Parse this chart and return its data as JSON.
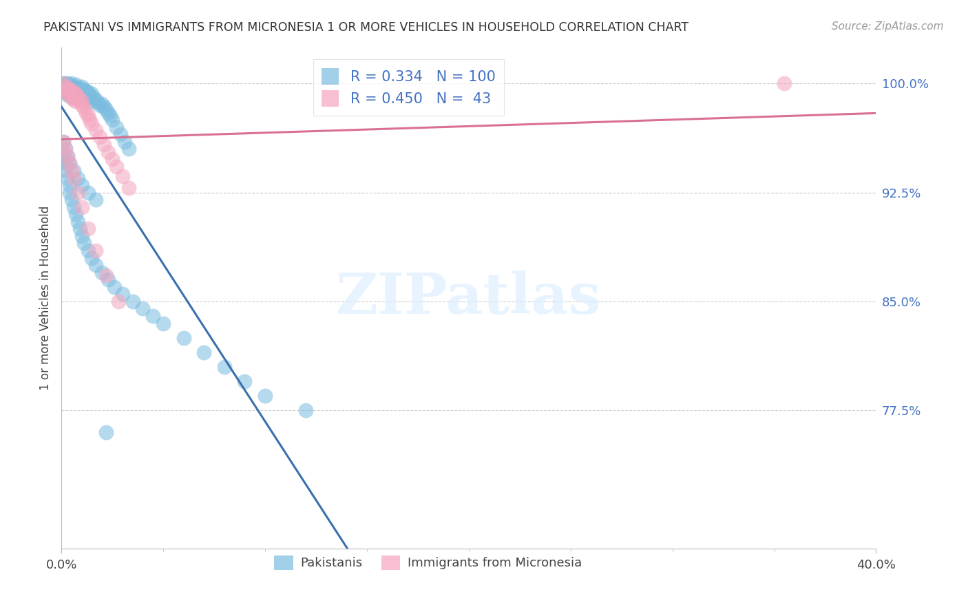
{
  "title": "PAKISTANI VS IMMIGRANTS FROM MICRONESIA 1 OR MORE VEHICLES IN HOUSEHOLD CORRELATION CHART",
  "source": "Source: ZipAtlas.com",
  "ylabel": "1 or more Vehicles in Household",
  "ytick_labels": [
    "100.0%",
    "92.5%",
    "85.0%",
    "77.5%"
  ],
  "ytick_vals": [
    1.0,
    0.925,
    0.85,
    0.775
  ],
  "xlim": [
    0.0,
    0.4
  ],
  "ylim": [
    0.68,
    1.025
  ],
  "blue_R": 0.334,
  "blue_N": 100,
  "pink_R": 0.45,
  "pink_N": 43,
  "blue_color": "#7bbcdf",
  "pink_color": "#f4a5be",
  "blue_line_color": "#3a6fad",
  "pink_line_color": "#d97090",
  "grid_color": "#cccccc",
  "blue_x": [
    0.001,
    0.001,
    0.001,
    0.002,
    0.002,
    0.002,
    0.002,
    0.003,
    0.003,
    0.003,
    0.003,
    0.003,
    0.004,
    0.004,
    0.004,
    0.004,
    0.005,
    0.005,
    0.005,
    0.005,
    0.005,
    0.006,
    0.006,
    0.006,
    0.007,
    0.007,
    0.007,
    0.007,
    0.008,
    0.008,
    0.008,
    0.009,
    0.009,
    0.009,
    0.01,
    0.01,
    0.01,
    0.011,
    0.011,
    0.012,
    0.012,
    0.013,
    0.013,
    0.014,
    0.015,
    0.015,
    0.016,
    0.017,
    0.018,
    0.019,
    0.02,
    0.021,
    0.022,
    0.023,
    0.024,
    0.025,
    0.027,
    0.029,
    0.031,
    0.033,
    0.001,
    0.002,
    0.002,
    0.003,
    0.004,
    0.004,
    0.005,
    0.006,
    0.007,
    0.008,
    0.009,
    0.01,
    0.011,
    0.013,
    0.015,
    0.017,
    0.02,
    0.023,
    0.026,
    0.03,
    0.035,
    0.04,
    0.045,
    0.05,
    0.06,
    0.07,
    0.08,
    0.09,
    0.1,
    0.12,
    0.001,
    0.002,
    0.003,
    0.004,
    0.006,
    0.008,
    0.01,
    0.013,
    0.017,
    0.022
  ],
  "blue_y": [
    1.0,
    0.998,
    0.996,
    1.0,
    0.998,
    0.996,
    0.994,
    1.0,
    0.998,
    0.996,
    0.994,
    0.992,
    0.999,
    0.997,
    0.995,
    0.993,
    1.0,
    0.998,
    0.996,
    0.994,
    0.991,
    0.998,
    0.995,
    0.992,
    0.999,
    0.997,
    0.994,
    0.99,
    0.997,
    0.994,
    0.991,
    0.997,
    0.994,
    0.99,
    0.998,
    0.995,
    0.991,
    0.996,
    0.992,
    0.995,
    0.991,
    0.994,
    0.99,
    0.992,
    0.993,
    0.988,
    0.99,
    0.989,
    0.987,
    0.985,
    0.986,
    0.984,
    0.982,
    0.98,
    0.978,
    0.975,
    0.97,
    0.965,
    0.96,
    0.955,
    0.95,
    0.945,
    0.94,
    0.935,
    0.93,
    0.925,
    0.92,
    0.915,
    0.91,
    0.905,
    0.9,
    0.895,
    0.89,
    0.885,
    0.88,
    0.875,
    0.87,
    0.865,
    0.86,
    0.855,
    0.85,
    0.845,
    0.84,
    0.835,
    0.825,
    0.815,
    0.805,
    0.795,
    0.785,
    0.775,
    0.96,
    0.955,
    0.95,
    0.945,
    0.94,
    0.935,
    0.93,
    0.925,
    0.92,
    0.76
  ],
  "pink_x": [
    0.001,
    0.002,
    0.002,
    0.003,
    0.003,
    0.004,
    0.004,
    0.005,
    0.005,
    0.006,
    0.006,
    0.007,
    0.007,
    0.008,
    0.009,
    0.01,
    0.01,
    0.011,
    0.012,
    0.013,
    0.014,
    0.015,
    0.017,
    0.019,
    0.021,
    0.023,
    0.025,
    0.027,
    0.03,
    0.033,
    0.001,
    0.002,
    0.003,
    0.004,
    0.005,
    0.006,
    0.008,
    0.01,
    0.013,
    0.017,
    0.022,
    0.028,
    0.355
  ],
  "pink_y": [
    1.0,
    0.998,
    0.995,
    0.997,
    0.993,
    0.996,
    0.992,
    0.995,
    0.99,
    0.994,
    0.989,
    0.993,
    0.988,
    0.991,
    0.989,
    0.988,
    0.985,
    0.983,
    0.98,
    0.978,
    0.975,
    0.972,
    0.968,
    0.963,
    0.958,
    0.953,
    0.948,
    0.943,
    0.936,
    0.928,
    0.96,
    0.955,
    0.95,
    0.945,
    0.94,
    0.935,
    0.925,
    0.915,
    0.9,
    0.885,
    0.868,
    0.85,
    1.0
  ]
}
